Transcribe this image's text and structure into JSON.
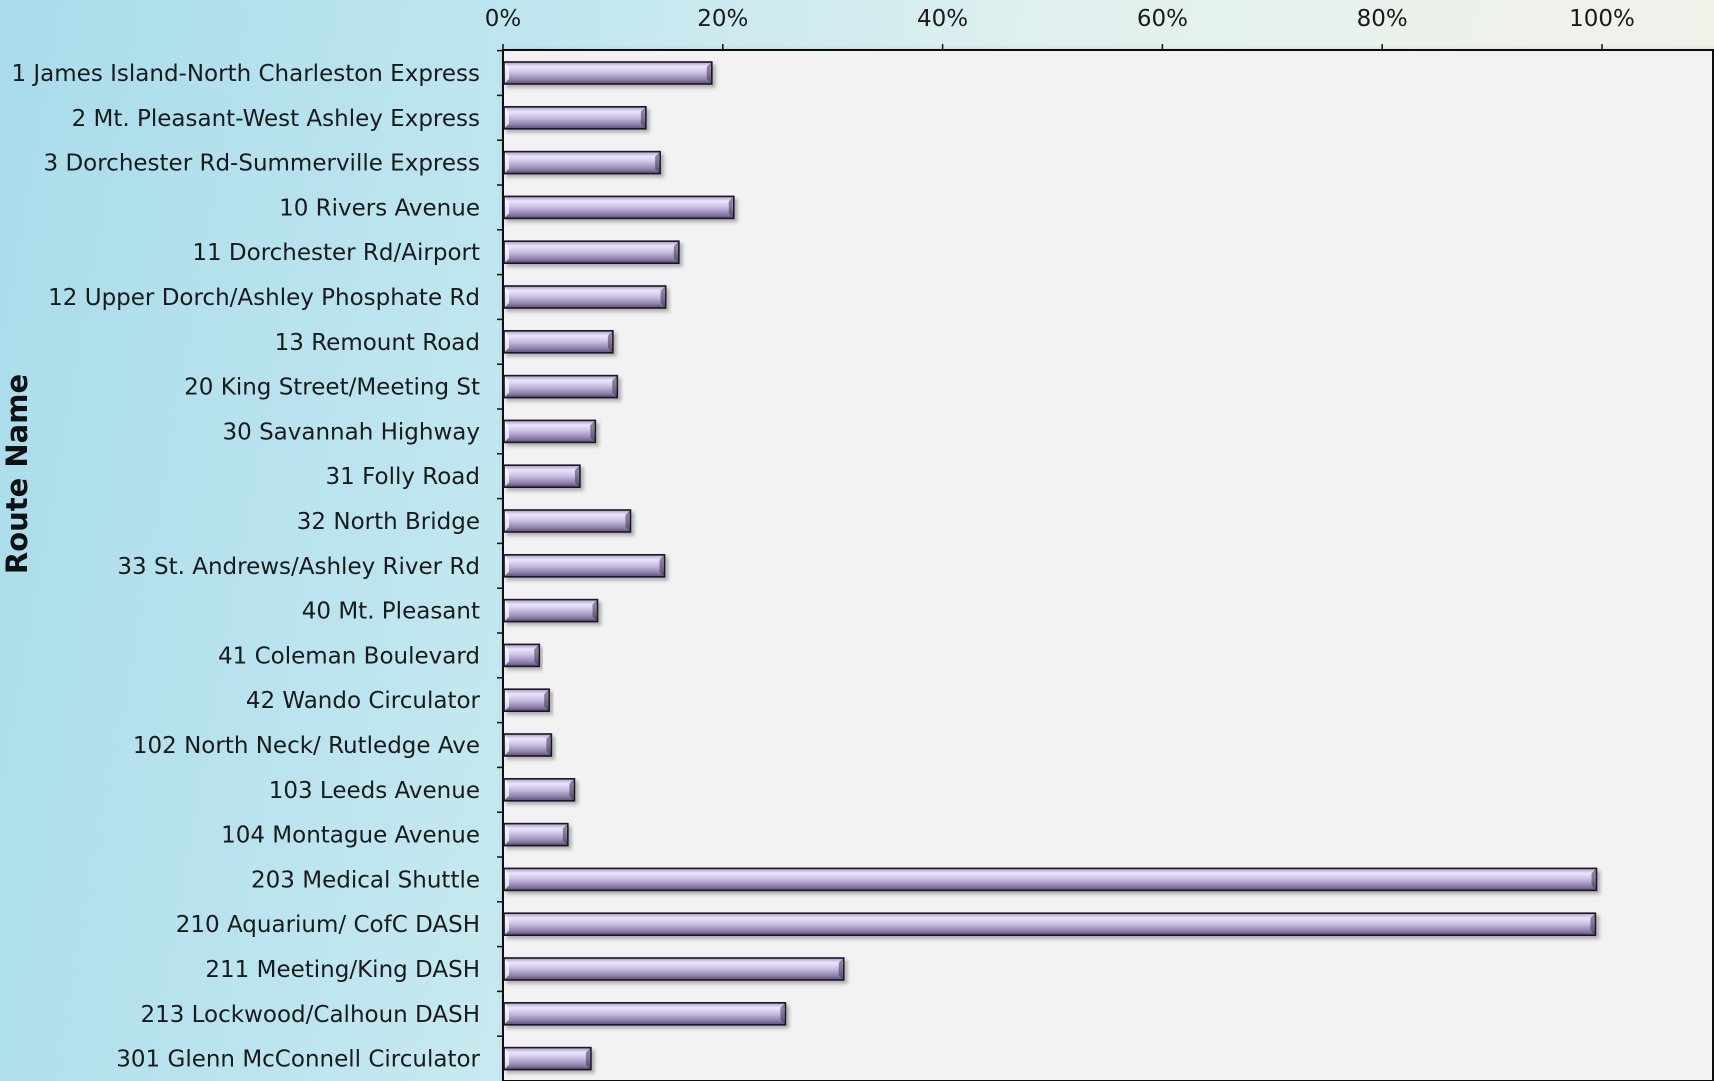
{
  "chart_data": {
    "type": "bar",
    "orientation": "horizontal",
    "title": "",
    "xlabel": "",
    "ylabel": "Route Name",
    "xlim": [
      0,
      100
    ],
    "x_ticks": [
      "0%",
      "20%",
      "40%",
      "60%",
      "80%",
      "100%"
    ],
    "grid": false,
    "legend": "none",
    "categories": [
      "1 James Island-North Charleston Express",
      "2 Mt. Pleasant-West Ashley Express",
      "3 Dorchester Rd-Summerville Express",
      "10 Rivers Avenue",
      "11 Dorchester Rd/Airport",
      "12 Upper Dorch/Ashley Phosphate Rd",
      "13 Remount Road",
      "20 King Street/Meeting St",
      "30 Savannah Highway",
      "31 Folly Road",
      "32 North Bridge",
      "33 St. Andrews/Ashley River Rd",
      "40 Mt. Pleasant",
      "41 Coleman Boulevard",
      "42 Wando Circulator",
      "102 North Neck/ Rutledge Ave",
      "103 Leeds Avenue",
      "104 Montague Avenue",
      "203 Medical Shuttle",
      "210 Aquarium/ CofC DASH",
      "211 Meeting/King DASH",
      "213 Lockwood/Calhoun DASH",
      "301 Glenn McConnell Circulator"
    ],
    "values": [
      19,
      13,
      14.3,
      21,
      16,
      14.8,
      10,
      10.4,
      8.4,
      7,
      11.6,
      14.7,
      8.6,
      3.3,
      4.2,
      4.4,
      6.5,
      5.9,
      99.5,
      99.4,
      31,
      25.7,
      8
    ]
  },
  "colors": {
    "bar_light": "#ece6fb",
    "bar_mid": "#c8b9e4",
    "bar_dark": "#5f4f76",
    "bar_border": "#1c1526",
    "plot_bg": "#f2f2f2",
    "axis": "#111111"
  }
}
